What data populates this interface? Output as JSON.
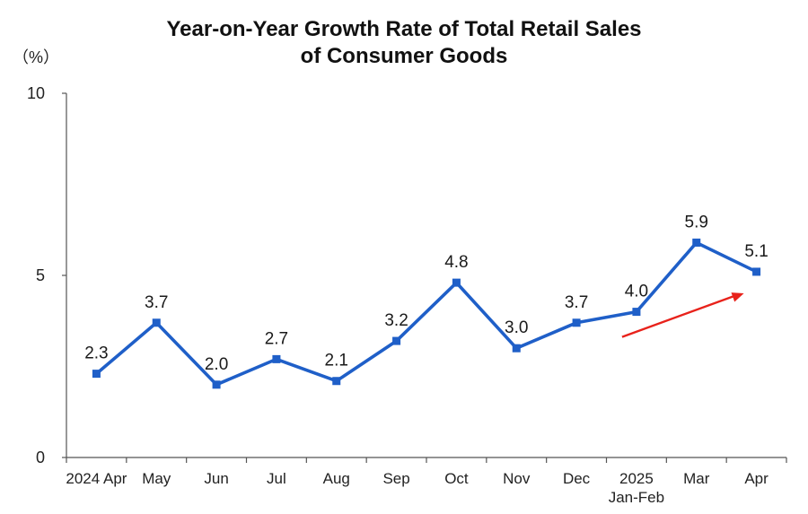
{
  "chart_data": {
    "type": "line",
    "title_lines": [
      "Year-on-Year Growth Rate of Total Retail Sales",
      "of Consumer Goods"
    ],
    "unit": "（%）",
    "categories": [
      [
        "2024 Apr"
      ],
      [
        "May"
      ],
      [
        "Jun"
      ],
      [
        "Jul"
      ],
      [
        "Aug"
      ],
      [
        "Sep"
      ],
      [
        "Oct"
      ],
      [
        "Nov"
      ],
      [
        "Dec"
      ],
      [
        "2025",
        "Jan-Feb"
      ],
      [
        "Mar"
      ],
      [
        "Apr"
      ]
    ],
    "series": [
      {
        "values": [
          2.3,
          3.7,
          2.0,
          2.7,
          2.1,
          3.2,
          4.8,
          3.0,
          3.7,
          4.0,
          5.9,
          5.1
        ]
      }
    ],
    "data_labels": [
      "2.3",
      "3.7",
      "2.0",
      "2.7",
      "2.1",
      "3.2",
      "4.8",
      "3.0",
      "3.7",
      "4.0",
      "5.9",
      "5.1"
    ],
    "ylim": [
      0,
      10
    ],
    "yticks": [
      "0",
      "5",
      "10"
    ],
    "grid": false,
    "line_color": "#1f5fc8",
    "annotation_arrow_color": "#e8221b",
    "annotation": {
      "type": "trend-arrow",
      "from_category": 9,
      "to_category": 11
    }
  }
}
